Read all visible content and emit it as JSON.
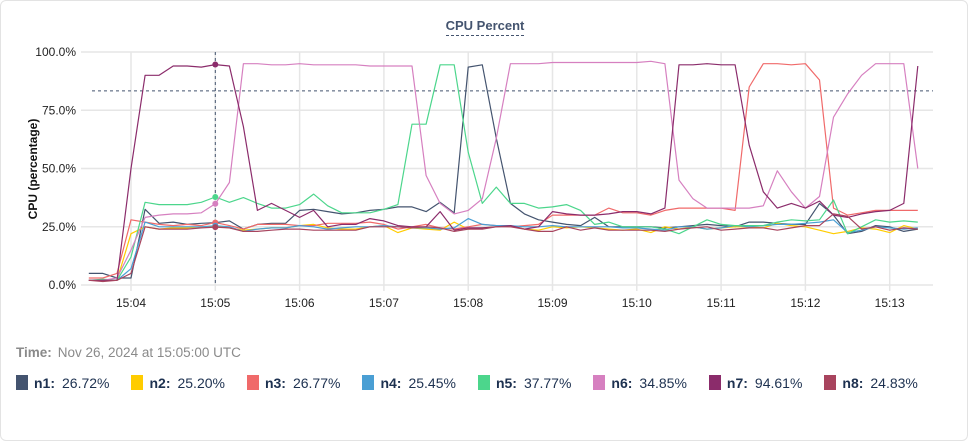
{
  "title": "CPU Percent",
  "hover": {
    "label": "Time:",
    "value": "Nov 26, 2024 at 15:05:00 UTC",
    "x": "15:05:00"
  },
  "legend": [
    {
      "name": "n1",
      "value": "26.72%",
      "color": "#44546F"
    },
    {
      "name": "n2",
      "value": "25.20%",
      "color": "#FFCC00"
    },
    {
      "name": "n3",
      "value": "26.77%",
      "color": "#F06A6A"
    },
    {
      "name": "n4",
      "value": "25.45%",
      "color": "#4A9FD4"
    },
    {
      "name": "n5",
      "value": "37.77%",
      "color": "#4CD68C"
    },
    {
      "name": "n6",
      "value": "34.85%",
      "color": "#D680C0"
    },
    {
      "name": "n7",
      "value": "94.61%",
      "color": "#8B2C6B"
    },
    {
      "name": "n8",
      "value": "24.83%",
      "color": "#A8445E"
    }
  ],
  "chart_data": {
    "type": "line",
    "title": "CPU Percent",
    "ylabel": "CPU (percentage)",
    "xlabel": "",
    "ylim": [
      0,
      100
    ],
    "yticks": [
      "0.0%",
      "25.0%",
      "50.0%",
      "75.0%",
      "100.0%"
    ],
    "ytick_values": [
      0,
      25,
      50,
      75,
      100
    ],
    "xticks": [
      "15:04",
      "15:05",
      "15:06",
      "15:07",
      "15:08",
      "15:09",
      "15:10",
      "15:11",
      "15:12",
      "15:13"
    ],
    "xlim": [
      "15:03:30",
      "15:13:50"
    ],
    "grid": true,
    "threshold": 83.3,
    "x": [
      "15:03:30",
      "15:03:40",
      "15:03:50",
      "15:04:00",
      "15:04:10",
      "15:04:20",
      "15:04:30",
      "15:04:40",
      "15:04:50",
      "15:05:00",
      "15:05:10",
      "15:05:20",
      "15:05:30",
      "15:05:40",
      "15:05:50",
      "15:06:00",
      "15:06:10",
      "15:06:20",
      "15:06:30",
      "15:06:40",
      "15:06:50",
      "15:07:00",
      "15:07:10",
      "15:07:20",
      "15:07:30",
      "15:07:40",
      "15:07:50",
      "15:08:00",
      "15:08:10",
      "15:08:20",
      "15:08:30",
      "15:08:40",
      "15:08:50",
      "15:09:00",
      "15:09:10",
      "15:09:20",
      "15:09:30",
      "15:09:40",
      "15:09:50",
      "15:10:00",
      "15:10:10",
      "15:10:20",
      "15:10:30",
      "15:10:40",
      "15:10:50",
      "15:11:00",
      "15:11:10",
      "15:11:20",
      "15:11:30",
      "15:11:40",
      "15:11:50",
      "15:12:00",
      "15:12:10",
      "15:12:20",
      "15:12:30",
      "15:12:40",
      "15:12:50",
      "15:13:00",
      "15:13:10",
      "15:13:20"
    ],
    "series": [
      {
        "name": "n1",
        "color": "#44546F",
        "values": [
          5,
          5,
          3,
          3,
          32.5,
          26.5,
          27,
          26,
          26.5,
          26.72,
          27.5,
          24,
          26,
          26.5,
          26.5,
          32,
          32.5,
          31.5,
          30.5,
          31,
          32,
          32.5,
          33.5,
          33.5,
          31.5,
          35.5,
          31,
          93.5,
          94.5,
          63,
          35,
          30.5,
          28,
          27,
          26,
          25.5,
          29,
          25,
          25,
          25,
          25,
          24.5,
          25,
          25.5,
          26,
          25.5,
          25,
          27,
          27,
          26.5,
          26,
          26,
          35,
          30,
          22,
          23,
          25.5,
          25,
          23,
          24
        ]
      },
      {
        "name": "n2",
        "color": "#FFCC00",
        "values": [
          2,
          2,
          2,
          22,
          25,
          24,
          24.5,
          24.5,
          25,
          25.2,
          24.5,
          23.5,
          24,
          24.5,
          24.5,
          25.5,
          26,
          24.5,
          24,
          24,
          25,
          25.5,
          22.5,
          24.5,
          24,
          23.5,
          27,
          24,
          24.5,
          25,
          25.5,
          24,
          23.5,
          25,
          24.5,
          25,
          24.5,
          24,
          23.5,
          24,
          22.5,
          25,
          24,
          25,
          24,
          24.5,
          25,
          25,
          24.5,
          26.5,
          25.5,
          25,
          23.5,
          22,
          23,
          24.5,
          24,
          22.5,
          25.5,
          24
        ]
      },
      {
        "name": "n3",
        "color": "#F06A6A",
        "values": [
          3,
          3,
          5,
          28,
          27,
          26,
          25.5,
          26,
          25.5,
          26.77,
          25.5,
          24,
          26,
          26,
          26,
          25.5,
          25.5,
          26.5,
          26.5,
          26.5,
          27,
          26,
          24,
          25,
          26,
          24.5,
          24,
          25,
          26,
          25.5,
          25,
          25.5,
          26,
          30,
          30,
          30,
          30,
          33,
          31,
          31,
          30,
          32,
          33,
          33,
          33,
          33,
          32,
          85,
          95,
          95,
          94.5,
          95,
          88,
          33,
          30,
          31,
          32,
          32,
          32,
          32
        ]
      },
      {
        "name": "n4",
        "color": "#4A9FD4",
        "values": [
          2,
          2,
          2,
          7,
          27,
          25,
          25,
          25,
          25,
          25.45,
          25,
          23,
          24,
          24.5,
          24.5,
          25.5,
          25,
          24,
          24.5,
          25,
          25,
          25.5,
          25,
          24.5,
          24.5,
          24,
          24.5,
          28.5,
          26,
          25.5,
          25.5,
          25,
          25,
          25.5,
          25,
          25,
          25,
          25,
          24.5,
          24.5,
          24,
          23.5,
          25,
          25,
          24,
          24.5,
          25.5,
          25,
          25.5,
          26,
          26,
          26.5,
          27,
          28,
          22.5,
          23.5,
          25,
          24.5,
          24,
          24.5
        ]
      },
      {
        "name": "n5",
        "color": "#4CD68C",
        "values": [
          2,
          2.5,
          2,
          12,
          35.5,
          34.5,
          34.5,
          34.5,
          35.5,
          37.77,
          35.5,
          37.5,
          35,
          33,
          33,
          34.5,
          39,
          34,
          31,
          31,
          31,
          32.5,
          34.5,
          69,
          69,
          94.5,
          94.5,
          57,
          35,
          42,
          35,
          35,
          33,
          33.5,
          34.5,
          32,
          26,
          27,
          25,
          25,
          25,
          24,
          22,
          25,
          28,
          26,
          25.5,
          25.5,
          25.5,
          27,
          28,
          27.5,
          28,
          36.5,
          22,
          25,
          28,
          27,
          27.5,
          27
        ]
      },
      {
        "name": "n6",
        "color": "#D680C0",
        "values": [
          2,
          2,
          3,
          15,
          29,
          30,
          30.5,
          30.5,
          31,
          34.85,
          44,
          95,
          95,
          94.5,
          94.5,
          95,
          94.5,
          94.5,
          94.5,
          94.5,
          94,
          94,
          94,
          94,
          47,
          35,
          30.5,
          32,
          37,
          63,
          95,
          95,
          95,
          95.5,
          95.5,
          95.5,
          95.5,
          95.5,
          95.5,
          95.5,
          96,
          95,
          45,
          37,
          33,
          33,
          33,
          33,
          34,
          49,
          40,
          33,
          38,
          72,
          82,
          90,
          95,
          95,
          95,
          50
        ]
      },
      {
        "name": "n7",
        "color": "#8B2C6B",
        "values": [
          2,
          2,
          2,
          50,
          90,
          90,
          94,
          94,
          93.5,
          94.61,
          94,
          68,
          32,
          35,
          32,
          29,
          32,
          25,
          26,
          26,
          28.5,
          27.5,
          25.5,
          25,
          25,
          31.5,
          23.5,
          24.5,
          24.5,
          25,
          25.5,
          24,
          25,
          31.5,
          30.5,
          30,
          30,
          30.5,
          31.5,
          31.5,
          30.5,
          33,
          94.5,
          94.5,
          95,
          94.5,
          94.5,
          60,
          40,
          33,
          35,
          33,
          36,
          30,
          29,
          30.5,
          31.5,
          32,
          35,
          94
        ]
      },
      {
        "name": "n8",
        "color": "#A8445E",
        "values": [
          2,
          1.5,
          2,
          5,
          25,
          24,
          24,
          24,
          24.5,
          24.83,
          24.5,
          23,
          23,
          23.5,
          24,
          24,
          23.5,
          23.5,
          23.5,
          23.5,
          25,
          25,
          25,
          24.5,
          25,
          24.5,
          23,
          24,
          24,
          25,
          25,
          24,
          23,
          23,
          25,
          23.5,
          24.5,
          23.5,
          23.5,
          23.5,
          23.5,
          23,
          24,
          24.5,
          25,
          23.5,
          24,
          24.5,
          24.5,
          23.5,
          24.5,
          25.5,
          25.5,
          30.5,
          29.5,
          24,
          25,
          23.5,
          24.5,
          24
        ]
      }
    ]
  }
}
